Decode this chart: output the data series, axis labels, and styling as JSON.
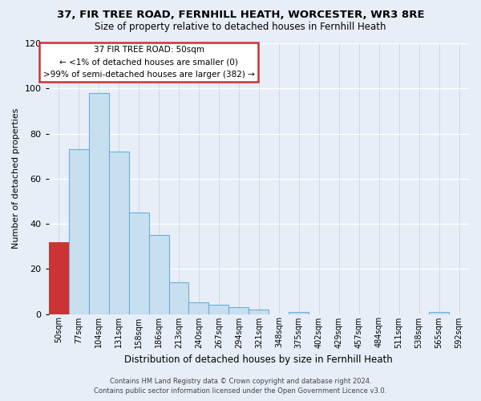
{
  "title_line1": "37, FIR TREE ROAD, FERNHILL HEATH, WORCESTER, WR3 8RE",
  "title_line2": "Size of property relative to detached houses in Fernhill Heath",
  "xlabel": "Distribution of detached houses by size in Fernhill Heath",
  "ylabel": "Number of detached properties",
  "bin_labels": [
    "50sqm",
    "77sqm",
    "104sqm",
    "131sqm",
    "158sqm",
    "186sqm",
    "213sqm",
    "240sqm",
    "267sqm",
    "294sqm",
    "321sqm",
    "348sqm",
    "375sqm",
    "402sqm",
    "429sqm",
    "457sqm",
    "484sqm",
    "511sqm",
    "538sqm",
    "565sqm",
    "592sqm"
  ],
  "bar_heights": [
    32,
    73,
    98,
    72,
    45,
    35,
    14,
    5,
    4,
    3,
    2,
    0,
    1,
    0,
    0,
    0,
    0,
    0,
    0,
    1,
    0
  ],
  "highlight_bar_index": 0,
  "highlight_color": "#cc3333",
  "bar_fill_color": "#c8dff0",
  "bar_edge_color": "#6baed6",
  "ylim": [
    0,
    120
  ],
  "yticks": [
    0,
    20,
    40,
    60,
    80,
    100,
    120
  ],
  "annotation_title": "37 FIR TREE ROAD: 50sqm",
  "annotation_line2": "← <1% of detached houses are smaller (0)",
  "annotation_line3": ">99% of semi-detached houses are larger (382) →",
  "footer_line1": "Contains HM Land Registry data © Crown copyright and database right 2024.",
  "footer_line2": "Contains public sector information licensed under the Open Government Licence v3.0.",
  "background_color": "#e8eef8"
}
